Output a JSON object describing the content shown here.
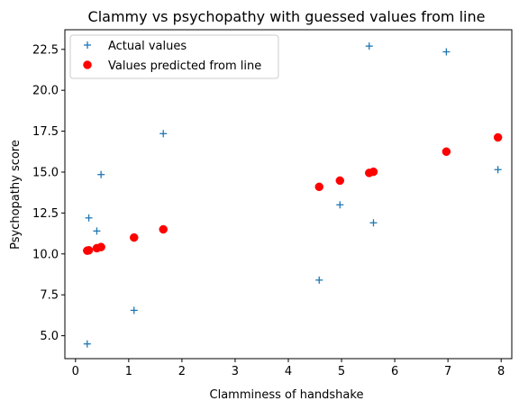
{
  "chart_data": {
    "type": "scatter",
    "title": "Clammy vs psychopathy with guessed values from line",
    "xlabel": "Clamminess of handshake",
    "ylabel": "Psychopathy score",
    "xlim": [
      -0.2,
      8.2
    ],
    "ylim": [
      3.6,
      23.7
    ],
    "xticks": [
      0,
      1,
      2,
      3,
      4,
      5,
      6,
      7,
      8
    ],
    "xtick_labels": [
      "0",
      "1",
      "2",
      "3",
      "4",
      "5",
      "6",
      "7",
      "8"
    ],
    "yticks": [
      5.0,
      7.5,
      10.0,
      12.5,
      15.0,
      17.5,
      20.0,
      22.5
    ],
    "ytick_labels": [
      "5.0",
      "7.5",
      "10.0",
      "12.5",
      "15.0",
      "17.5",
      "20.0",
      "22.5"
    ],
    "grid": false,
    "legend_position": "top-left",
    "series": [
      {
        "name": "Actual values",
        "marker": "plus",
        "color": "#1f77b4",
        "points": [
          [
            0.22,
            4.5
          ],
          [
            0.25,
            12.2
          ],
          [
            0.4,
            11.4
          ],
          [
            0.48,
            14.85
          ],
          [
            1.1,
            6.55
          ],
          [
            1.65,
            17.35
          ],
          [
            4.58,
            8.4
          ],
          [
            4.97,
            13.0
          ],
          [
            5.52,
            22.7
          ],
          [
            5.6,
            11.9
          ],
          [
            6.97,
            22.35
          ],
          [
            7.94,
            15.15
          ]
        ]
      },
      {
        "name": "Values predicted from line",
        "marker": "circle",
        "color": "#ff0000",
        "points": [
          [
            0.22,
            10.2
          ],
          [
            0.25,
            10.22
          ],
          [
            0.4,
            10.35
          ],
          [
            0.48,
            10.42
          ],
          [
            1.1,
            11.0
          ],
          [
            1.65,
            11.5
          ],
          [
            4.58,
            14.1
          ],
          [
            4.97,
            14.48
          ],
          [
            5.52,
            14.95
          ],
          [
            5.6,
            15.02
          ],
          [
            6.97,
            16.25
          ],
          [
            7.94,
            17.12
          ]
        ]
      }
    ]
  }
}
